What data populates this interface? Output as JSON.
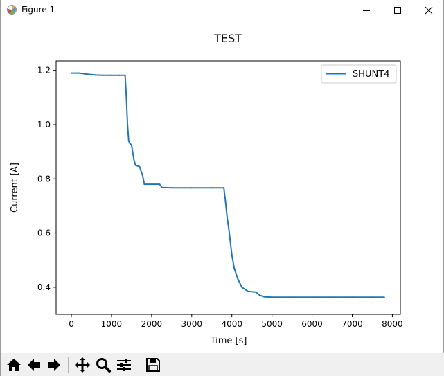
{
  "window": {
    "title": "Figure 1",
    "controls": [
      "minimize-icon",
      "maximize-icon",
      "close-icon"
    ]
  },
  "toolbar": {
    "tools": [
      "home-icon",
      "back-arrow-icon",
      "forward-arrow-icon",
      "pan-icon",
      "zoom-icon",
      "subplots-icon",
      "save-icon"
    ]
  },
  "colors": {
    "series": "#1f77b4",
    "toolbar_bg": "#f0f0f0"
  },
  "chart_data": {
    "type": "line",
    "title": "TEST",
    "xlabel": "Time [s]",
    "ylabel": "Current [A]",
    "xlim": [
      -380,
      8200
    ],
    "ylim": [
      0.3,
      1.235
    ],
    "xticks": [
      0,
      1000,
      2000,
      3000,
      4000,
      5000,
      6000,
      7000,
      8000
    ],
    "yticks": [
      0.4,
      0.6,
      0.8,
      1.0,
      1.2
    ],
    "xtick_labels": [
      "0",
      "1000",
      "2000",
      "3000",
      "4000",
      "5000",
      "6000",
      "7000",
      "8000"
    ],
    "ytick_labels": [
      "0.4",
      "0.6",
      "0.8",
      "1.0",
      "1.2"
    ],
    "grid": false,
    "legend_position": "top-right",
    "series": [
      {
        "name": "SHUNT4",
        "x": [
          0,
          200,
          400,
          600,
          800,
          1000,
          1200,
          1340,
          1370,
          1400,
          1430,
          1460,
          1500,
          1560,
          1600,
          1700,
          1780,
          1820,
          2000,
          2200,
          2260,
          2500,
          3000,
          3500,
          3700,
          3800,
          3840,
          3880,
          3920,
          3960,
          4000,
          4060,
          4150,
          4250,
          4400,
          4600,
          4700,
          4800,
          5000,
          5500,
          6000,
          6500,
          7000,
          7500,
          7800
        ],
        "y": [
          1.19,
          1.19,
          1.186,
          1.183,
          1.182,
          1.182,
          1.182,
          1.182,
          1.1,
          1.0,
          0.94,
          0.93,
          0.925,
          0.87,
          0.85,
          0.845,
          0.81,
          0.78,
          0.78,
          0.78,
          0.768,
          0.767,
          0.767,
          0.767,
          0.767,
          0.767,
          0.72,
          0.66,
          0.62,
          0.57,
          0.52,
          0.47,
          0.43,
          0.4,
          0.385,
          0.382,
          0.37,
          0.365,
          0.363,
          0.363,
          0.363,
          0.363,
          0.363,
          0.363,
          0.363
        ]
      }
    ]
  }
}
